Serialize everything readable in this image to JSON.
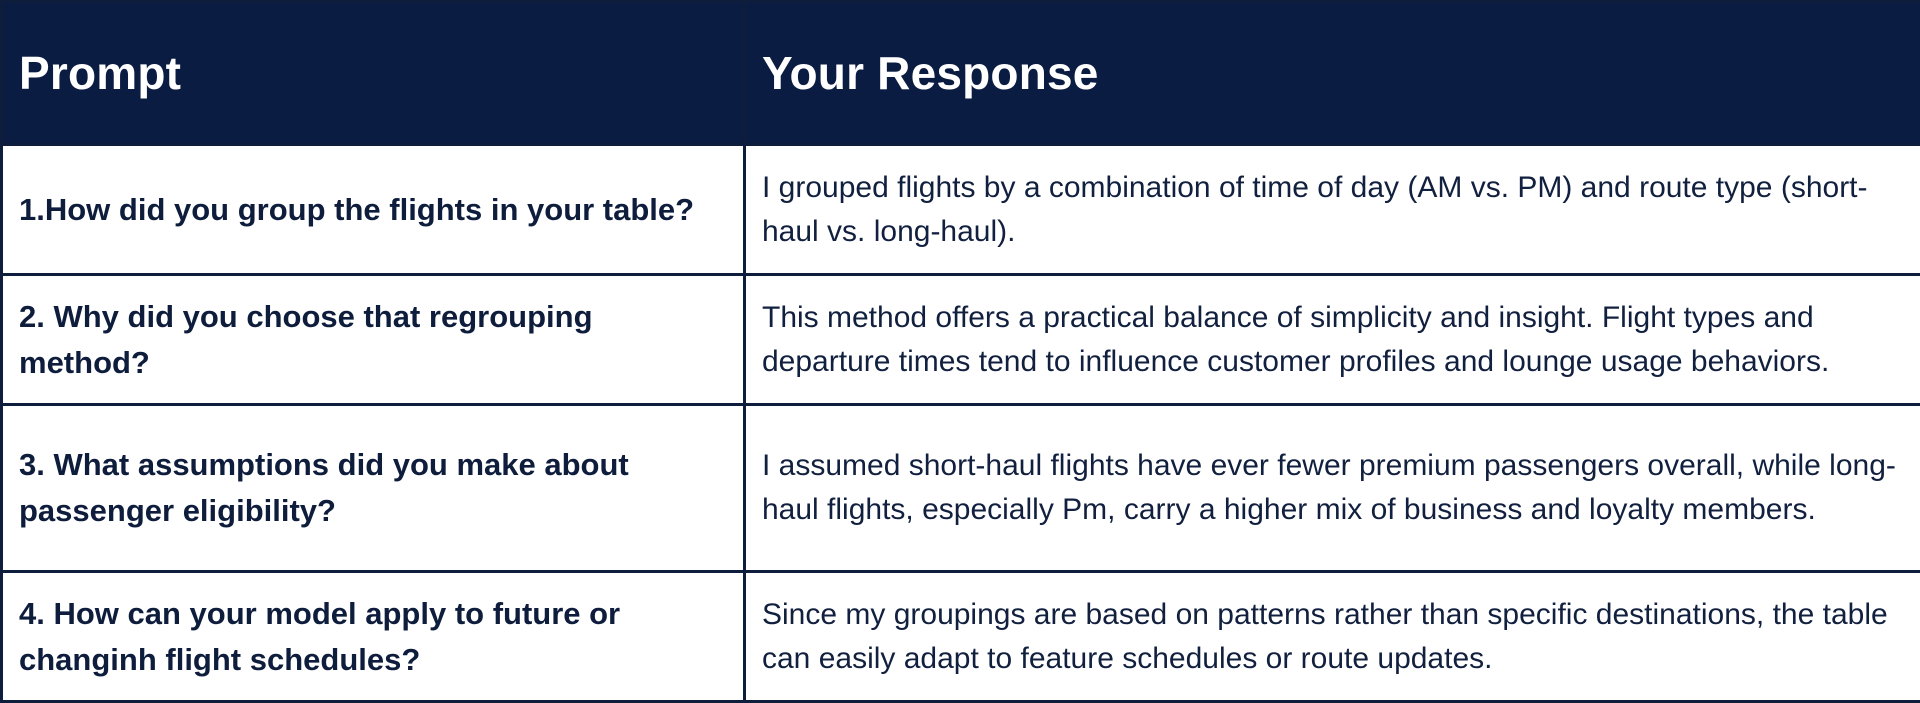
{
  "table": {
    "header": {
      "prompt": "Prompt",
      "response": "Your Response"
    },
    "rows": [
      {
        "prompt": "1.How did you group the flights in your table?",
        "response": "I grouped flights by a combination of time of day (AM vs. PM) and route type (short-haul vs. long-haul)."
      },
      {
        "prompt": "2. Why did you choose that regrouping method?",
        "response": "This method offers a practical balance of simplicity and insight. Flight types and departure times tend to influence customer profiles and lounge usage behaviors."
      },
      {
        "prompt": "3. What assumptions did you make about passenger eligibility?",
        "response": "I assumed short-haul flights have ever fewer premium passengers overall, while long-haul flights, especially Pm, carry a higher mix of business and loyalty members."
      },
      {
        "prompt": "4. How can your model apply to future or changinh flight schedules?",
        "response": "Since my groupings are based on patterns rather than specific destinations, the table can easily adapt to feature schedules or route updates."
      }
    ]
  },
  "colors": {
    "header_bg": "#0b1c42",
    "header_text": "#ffffff",
    "border": "#0f1d3d",
    "body_text": "#0f1d3d"
  }
}
